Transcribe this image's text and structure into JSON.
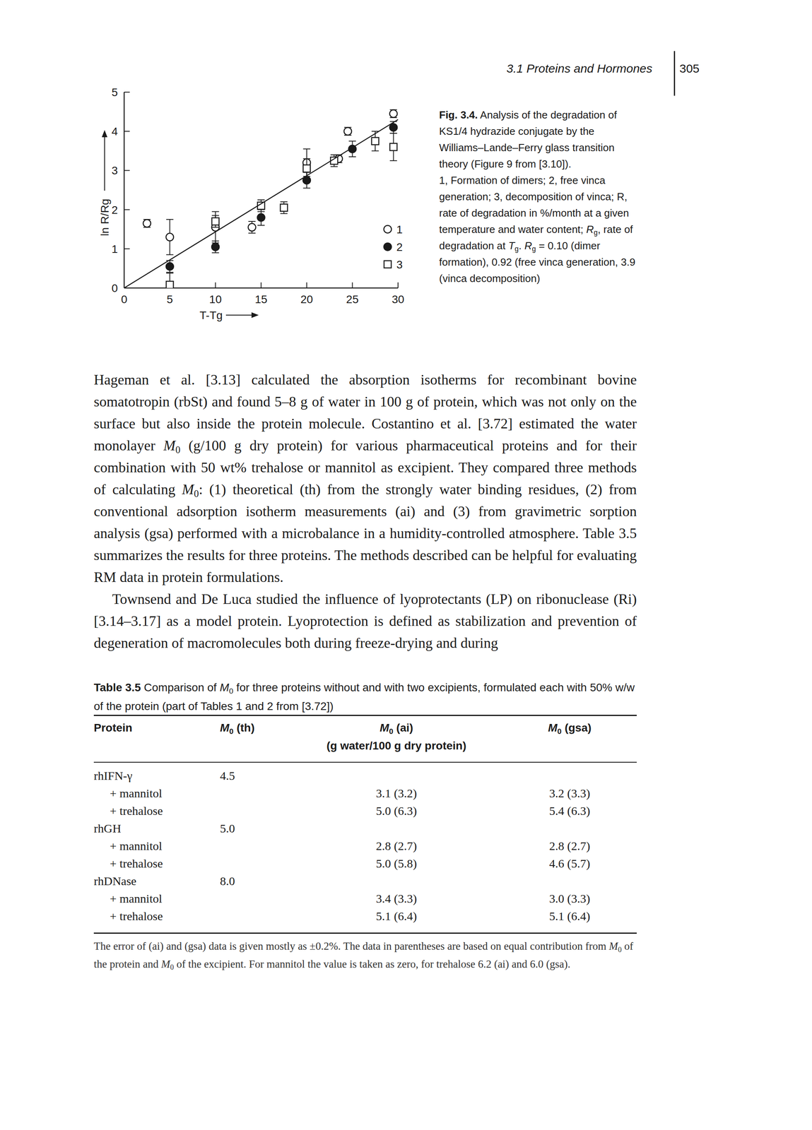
{
  "header": {
    "running_title": "3.1 Proteins and Hormones",
    "page_number": "305"
  },
  "chart_data": {
    "type": "scatter",
    "x_label": "T-Tg",
    "y_label": "ln R/Rg",
    "xlim": [
      0,
      30
    ],
    "ylim": [
      0,
      5
    ],
    "xticks": [
      0,
      5,
      10,
      15,
      20,
      25,
      30
    ],
    "yticks": [
      0,
      1,
      2,
      3,
      4,
      5
    ],
    "legend": "right",
    "series": [
      {
        "name": "1",
        "marker": "open-circle",
        "color": "#1a1a1a",
        "x": [
          2.5,
          5,
          10,
          14,
          20,
          23.5,
          24.5,
          29.5
        ],
        "values": [
          1.65,
          1.3,
          1.55,
          1.55,
          3.2,
          3.3,
          4.0,
          4.45
        ],
        "errors": [
          0.1,
          0.45,
          0.4,
          0.15,
          0.35,
          0.1,
          0.1,
          0.1
        ]
      },
      {
        "name": "2",
        "marker": "filled-circle",
        "color": "#1a1a1a",
        "x": [
          5,
          10,
          15,
          20,
          25,
          29.5
        ],
        "values": [
          0.55,
          1.05,
          1.8,
          2.75,
          3.55,
          4.1
        ],
        "errors": [
          0.15,
          0.15,
          0.2,
          0.2,
          0.2,
          0.15
        ]
      },
      {
        "name": "3",
        "marker": "open-square",
        "color": "#1a1a1a",
        "x": [
          5,
          10,
          15,
          17.5,
          20,
          23,
          27.5,
          29.5
        ],
        "values": [
          0.08,
          1.7,
          2.1,
          2.05,
          3.05,
          3.25,
          3.75,
          3.6
        ],
        "errors": [
          0.3,
          0.15,
          0.15,
          0.15,
          0.25,
          0.15,
          0.25,
          0.35
        ]
      },
      {
        "type": "line",
        "line_style": "solid",
        "color": "#1a1a1a",
        "x": [
          0,
          30
        ],
        "values": [
          0,
          4.3
        ]
      }
    ]
  },
  "figure_caption": [
    [
      {
        "b": "Fig. 3.4."
      },
      "  Analysis of the degradation of KS1/4 hydrazide conjugate by the Williams–Lande–Ferry glass transition theory (Figure 9 from [3.10])."
    ],
    [
      "1, Formation of dimers; 2, free vinca generation; 3, decomposition of vinca; R, rate of degradation in %/month at a given temperature and water content; ",
      {
        "it": "R"
      },
      {
        "sub": "g"
      },
      ", rate of degradation at ",
      {
        "it": "T"
      },
      {
        "sub": "g"
      },
      ". ",
      {
        "it": "R"
      },
      {
        "sub": "g"
      },
      " = 0.10 (dimer formation), 0.92 (free vinca generation, 3.9 (vinca decomposition)"
    ]
  ],
  "paragraphs": [
    [
      "Hageman et al. [3.13] calculated the absorption isotherms for recombinant bovine somatotropin (rbSt) and found 5–8 g of water in 100 g of protein, which was not only on the surface but also inside the protein molecule. Costantino et al. [3.72] estimated the water monolayer ",
      {
        "it": "M"
      },
      {
        "sub": "0"
      },
      " (g/100 g dry protein) for various pharmaceutical proteins and for their combination with 50 wt% trehalose or mannitol as excipient. They compared three methods of calculating ",
      {
        "it": "M"
      },
      {
        "sub": "0"
      },
      ": (1) theoretical (th) from the strongly water binding residues, (2) from conventional adsorption isotherm measurements (ai) and (3) from gravimetric sorption analysis (gsa) performed with a microbalance in a humidity-controlled atmosphere. Table 3.5 summarizes the results for three proteins. The methods described can be helpful for evaluating RM data in protein formulations."
    ],
    [
      "Townsend and De Luca studied the influence of lyoprotectants (LP) on ribonuclease (Ri) [3.14–3.17] as a model protein. Lyoprotection is defined as stabilization and prevention of degeneration of macromolecules both during freeze-drying and during"
    ]
  ],
  "table": {
    "caption": [
      {
        "b": "Table 3.5"
      },
      "  Comparison of ",
      {
        "it": "M"
      },
      {
        "sub": "0"
      },
      " for three proteins without and with two excipients, formulated each with 50% w/w of the protein (part of Tables 1 and 2 from [3.72])"
    ],
    "columns": [
      [
        "Protein"
      ],
      [
        {
          "it": "M"
        },
        {
          "sub": "0"
        },
        " (th)"
      ],
      [
        {
          "it": "M"
        },
        {
          "sub": "0"
        },
        " (ai)"
      ],
      [
        {
          "it": "M"
        },
        {
          "sub": "0"
        },
        " (gsa)"
      ]
    ],
    "column_unit": "(g water/100 g dry protein)",
    "rows": [
      [
        "rhIFN-γ",
        "4.5",
        null,
        null
      ],
      [
        "+ mannitol",
        null,
        "3.1 (3.2)",
        "3.2 (3.3)"
      ],
      [
        "+ trehalose",
        null,
        "5.0 (6.3)",
        "5.4 (6.3)"
      ],
      [
        "rhGH",
        "5.0",
        null,
        null
      ],
      [
        "+ mannitol",
        null,
        "2.8 (2.7)",
        "2.8 (2.7)"
      ],
      [
        "+ trehalose",
        null,
        "5.0 (5.8)",
        "4.6 (5.7)"
      ],
      [
        "rhDNase",
        "8.0",
        null,
        null
      ],
      [
        "+ mannitol",
        null,
        "3.4 (3.3)",
        "3.0 (3.3)"
      ],
      [
        "+ trehalose",
        null,
        "5.1 (6.4)",
        "5.1 (6.4)"
      ]
    ],
    "footnote": [
      "The error of (ai) and (gsa) data is given mostly as ±0.2%. The data in parentheses are based on equal contribution from ",
      {
        "it": "M"
      },
      {
        "sub": "0"
      },
      " of the protein and ",
      {
        "it": "M"
      },
      {
        "sub": "0"
      },
      " of the excipient. For mannitol the value is taken as zero, for trehalose 6.2 (ai) and 6.0 (gsa)."
    ]
  }
}
